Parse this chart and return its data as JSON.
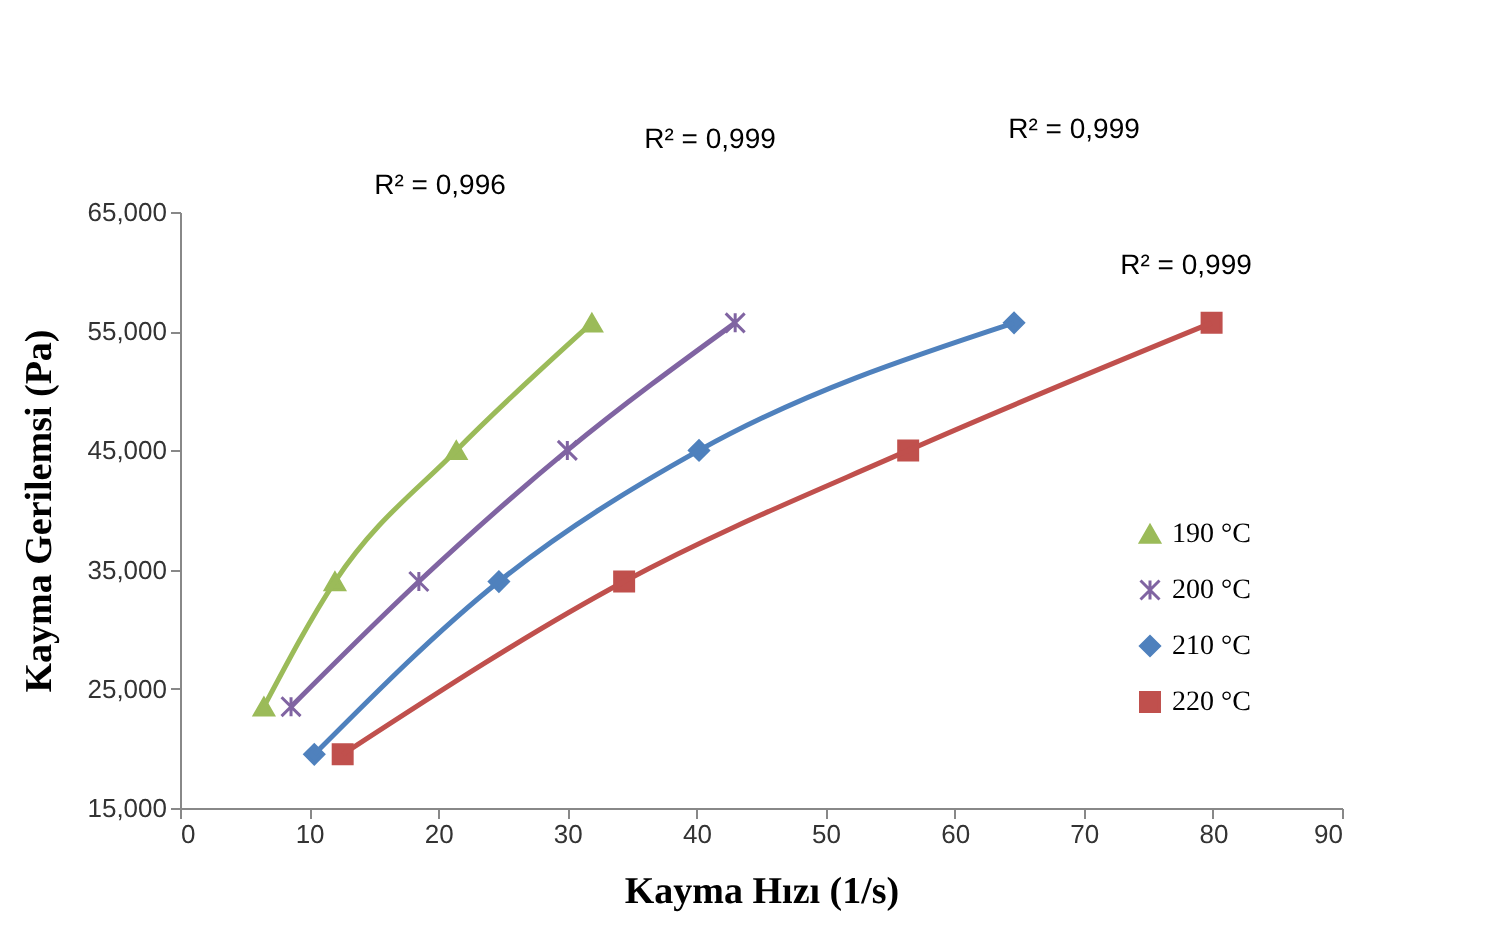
{
  "chart_data": {
    "type": "scatter",
    "xlabel": "Kayma Hızı (1/s)",
    "ylabel": "Kayma Gerilemsi  (Pa)",
    "xlim": [
      0,
      90
    ],
    "xticks": [
      0,
      10,
      20,
      30,
      40,
      50,
      60,
      70,
      80,
      90
    ],
    "ylim": [
      15,
      65
    ],
    "yticks": [
      {
        "value": 15,
        "label": "15,000"
      },
      {
        "value": 25,
        "label": "25,000"
      },
      {
        "value": 35,
        "label": "35,000"
      },
      {
        "value": 45,
        "label": "45,000"
      },
      {
        "value": 55,
        "label": "55,000"
      },
      {
        "value": 65,
        "label": "65,000"
      }
    ],
    "grid": false,
    "legend": "bottom right",
    "series": [
      {
        "name": "190 °C",
        "color": "#9bbb59",
        "marker": "triangle",
        "x": [
          6.5,
          12.0,
          21.4,
          31.9
        ],
        "values": [
          23.5,
          34,
          45,
          55.7
        ]
      },
      {
        "name": "200 °C",
        "color": "#8064a2",
        "marker": "cross",
        "x": [
          8.6,
          18.5,
          30.0,
          43.0
        ],
        "values": [
          23.5,
          34,
          45,
          55.7
        ]
      },
      {
        "name": "210 °C",
        "color": "#4f81bd",
        "marker": "diamond",
        "x": [
          10.4,
          24.7,
          40.2,
          64.6
        ],
        "values": [
          19.5,
          34,
          45,
          55.7
        ]
      },
      {
        "name": "220 °C",
        "color": "#c0504d",
        "marker": "square",
        "x": [
          12.6,
          34.4,
          56.4,
          79.9
        ],
        "values": [
          19.5,
          34,
          45,
          55.7
        ]
      },
      {
        "type": "line",
        "color": "#9bbb59",
        "x": [
          6.5,
          12.0,
          21.4,
          31.9
        ],
        "values": [
          23.5,
          34,
          45,
          55.7
        ]
      },
      {
        "type": "line",
        "color": "#8064a2",
        "x": [
          8.6,
          18.5,
          30.0,
          43.0
        ],
        "values": [
          23.5,
          34,
          45,
          55.7
        ]
      },
      {
        "type": "line",
        "color": "#4f81bd",
        "x": [
          10.4,
          24.7,
          40.2,
          64.6
        ],
        "values": [
          19.5,
          34,
          45,
          55.7
        ]
      },
      {
        "type": "line",
        "color": "#c0504d",
        "x": [
          12.6,
          34.4,
          56.4,
          79.9
        ],
        "values": [
          19.5,
          34,
          45,
          55.7
        ]
      }
    ],
    "annotations": [
      "R² = 0,996",
      "R² = 0,999",
      "R² = 0,999",
      "R² = 0,999"
    ]
  }
}
